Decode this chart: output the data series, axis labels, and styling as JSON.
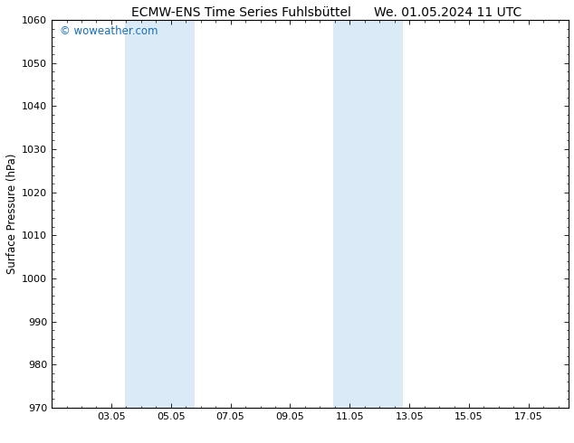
{
  "title_left": "ECMW-ENS Time Series Fuhlsbüttel",
  "title_right": "We. 01.05.2024 11 UTC",
  "ylabel": "Surface Pressure (hPa)",
  "ylim": [
    970,
    1060
  ],
  "yticks": [
    970,
    980,
    990,
    1000,
    1010,
    1020,
    1030,
    1040,
    1050,
    1060
  ],
  "xtick_positions": [
    3,
    5,
    7,
    9,
    11,
    13,
    15,
    17
  ],
  "xtick_labels": [
    "03.05",
    "05.05",
    "07.05",
    "09.05",
    "11.05",
    "13.05",
    "15.05",
    "17.05"
  ],
  "x_min": 1.0,
  "x_max": 18.33,
  "shaded_regions": [
    {
      "x_start": 3.458,
      "x_end": 4.625
    },
    {
      "x_start": 4.625,
      "x_end": 5.792
    },
    {
      "x_start": 10.458,
      "x_end": 11.625
    },
    {
      "x_start": 11.625,
      "x_end": 12.792
    }
  ],
  "shaded_color": "#daeaf7",
  "background_color": "#ffffff",
  "watermark_text": "© woweather.com",
  "watermark_color": "#1a6eb5",
  "title_fontsize": 10,
  "tick_fontsize": 8,
  "ylabel_fontsize": 8.5,
  "watermark_fontsize": 8.5
}
